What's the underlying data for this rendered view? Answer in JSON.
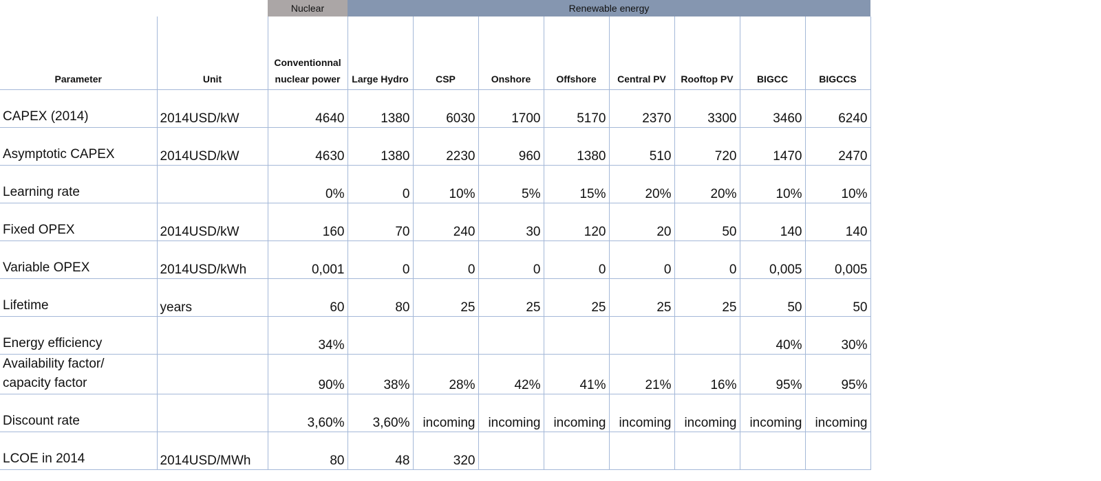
{
  "groups": {
    "nuclear": "Nuclear",
    "renewable": "Renewable energy"
  },
  "headers": {
    "parameter": "Parameter",
    "unit": "Unit",
    "technologies": [
      "Conventionnal nuclear power",
      "Large Hydro",
      "CSP",
      "Onshore",
      "Offshore",
      "Central PV",
      "Rooftop PV",
      "BIGCC",
      "BIGCCS"
    ]
  },
  "rows": [
    {
      "parameter": "CAPEX (2014)",
      "unit": "2014USD/kW",
      "values": [
        "4640",
        "1380",
        "6030",
        "1700",
        "5170",
        "2370",
        "3300",
        "3460",
        "6240"
      ]
    },
    {
      "parameter": "Asymptotic CAPEX",
      "unit": "2014USD/kW",
      "values": [
        "4630",
        "1380",
        "2230",
        "960",
        "1380",
        "510",
        "720",
        "1470",
        "2470"
      ]
    },
    {
      "parameter": "Learning rate",
      "unit": "",
      "values": [
        "0%",
        "0",
        "10%",
        "5%",
        "15%",
        "20%",
        "20%",
        "10%",
        "10%"
      ]
    },
    {
      "parameter": "Fixed OPEX",
      "unit": "2014USD/kW",
      "values": [
        "160",
        "70",
        "240",
        "30",
        "120",
        "20",
        "50",
        "140",
        "140"
      ]
    },
    {
      "parameter": "Variable OPEX",
      "unit": "2014USD/kWh",
      "values": [
        "0,001",
        "0",
        "0",
        "0",
        "0",
        "0",
        "0",
        "0,005",
        "0,005"
      ]
    },
    {
      "parameter": "Lifetime",
      "unit": "years",
      "values": [
        "60",
        "80",
        "25",
        "25",
        "25",
        "25",
        "25",
        "50",
        "50"
      ]
    },
    {
      "parameter": "Energy efficiency",
      "unit": "",
      "values": [
        "34%",
        "",
        "",
        "",
        "",
        "",
        "",
        "40%",
        "30%"
      ]
    },
    {
      "parameter": "Availability factor/ capacity factor",
      "unit": "",
      "values": [
        "90%",
        "38%",
        "28%",
        "42%",
        "41%",
        "21%",
        "16%",
        "95%",
        "95%"
      ]
    },
    {
      "parameter": "Discount rate",
      "unit": "",
      "values": [
        "3,60%",
        "3,60%",
        "incoming",
        "incoming",
        "incoming",
        "incoming",
        "incoming",
        "incoming",
        "incoming"
      ]
    },
    {
      "parameter": "LCOE in 2014",
      "unit": "2014USD/MWh",
      "values": [
        "80",
        "48",
        "320",
        "",
        "",
        "",
        "",
        "",
        ""
      ]
    }
  ]
}
